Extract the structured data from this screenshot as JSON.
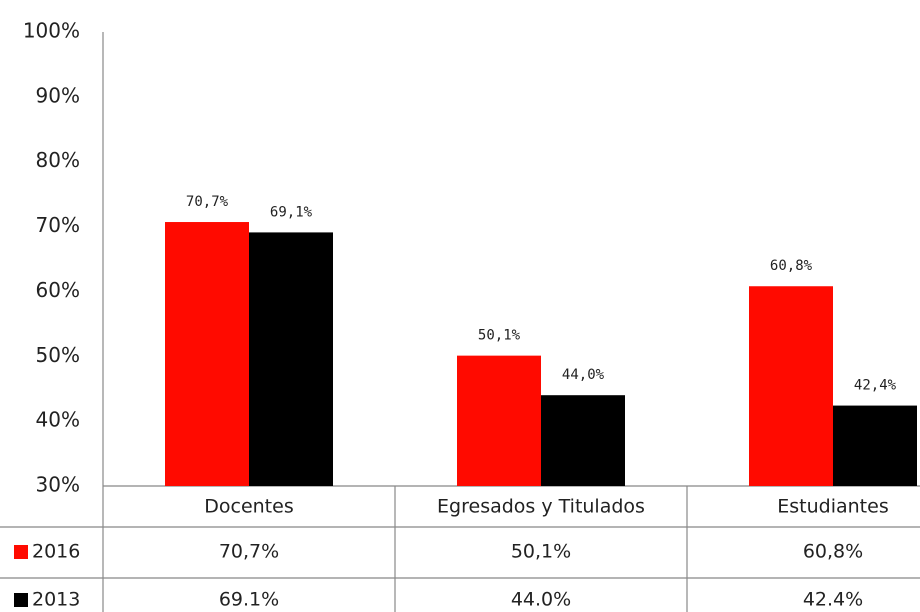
{
  "chart_data": {
    "type": "bar",
    "categories": [
      "Docentes",
      "Egresados y Titulados",
      "Estudiantes"
    ],
    "series": [
      {
        "name": "2016",
        "color": "#ff0a00",
        "values": [
          70.7,
          50.1,
          60.8
        ],
        "value_labels": [
          "70,7%",
          "50,1%",
          "60,8%"
        ],
        "table_labels": [
          "70,7%",
          "50,1%",
          "60,8%"
        ]
      },
      {
        "name": "2013",
        "color": "#000000",
        "values": [
          69.1,
          44.0,
          42.4
        ],
        "value_labels": [
          "69,1%",
          "44,0%",
          "42,4%"
        ],
        "table_labels": [
          "69.1%",
          "44.0%",
          "42.4%"
        ]
      }
    ],
    "ylim": [
      30,
      100
    ],
    "yticks": [
      {
        "value": 30,
        "label": "30%"
      },
      {
        "value": 40,
        "label": "40%"
      },
      {
        "value": 50,
        "label": "50%"
      },
      {
        "value": 60,
        "label": "60%"
      },
      {
        "value": 70,
        "label": "70%"
      },
      {
        "value": 80,
        "label": "80%"
      },
      {
        "value": 90,
        "label": "90%"
      },
      {
        "value": 100,
        "label": "100%"
      }
    ],
    "grid": false
  }
}
